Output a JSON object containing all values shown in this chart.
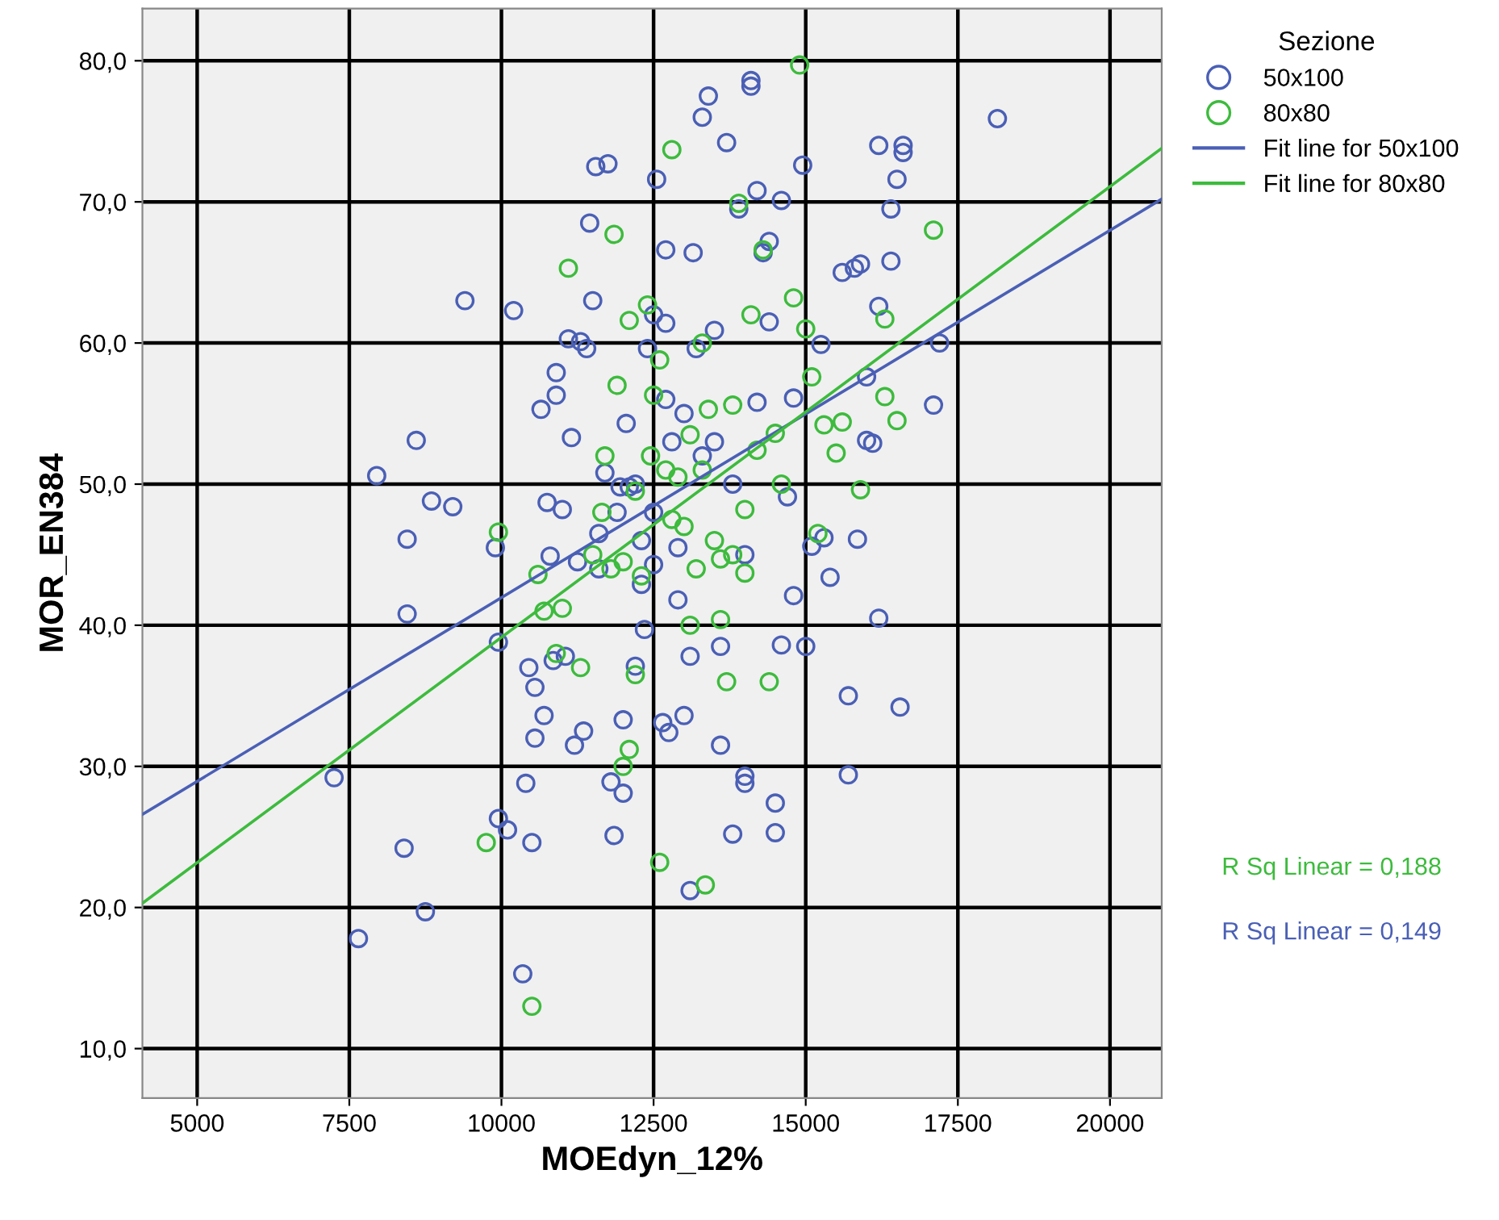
{
  "chart_data": {
    "type": "scatter",
    "xlabel": "MOEdyn_12%",
    "ylabel": "MOR_EN384",
    "legend_title": "Sezione",
    "legend": "right",
    "grid": true,
    "xlim": [
      4100,
      20850
    ],
    "ylim": [
      6.5,
      83.7
    ],
    "xticks": [
      5000,
      7500,
      10000,
      12500,
      15000,
      17500,
      20000
    ],
    "yticks": [
      {
        "value": 10,
        "label": "10,0"
      },
      {
        "value": 20,
        "label": "20,0"
      },
      {
        "value": 30,
        "label": "30,0"
      },
      {
        "value": 40,
        "label": "40,0"
      },
      {
        "value": 50,
        "label": "50,0"
      },
      {
        "value": 60,
        "label": "60,0"
      },
      {
        "value": 70,
        "label": "70,0"
      },
      {
        "value": 80,
        "label": "80,0"
      }
    ],
    "annotations": [
      "R Sq Linear = 0,188",
      "R Sq Linear = 0,149"
    ],
    "series": [
      {
        "name": "50x100",
        "marker": "circle",
        "color": "#4a5fb5",
        "x": [
          7250,
          7650,
          7950,
          8400,
          8450,
          8450,
          8600,
          8750,
          8850,
          9200,
          9400,
          9900,
          9950,
          9950,
          10100,
          10200,
          10350,
          10400,
          10450,
          10500,
          10550,
          10550,
          10650,
          10700,
          10750,
          10800,
          10850,
          10900,
          10900,
          11000,
          11050,
          11100,
          11150,
          11200,
          11250,
          11300,
          11350,
          11400,
          11450,
          11500,
          11550,
          11600,
          11600,
          11700,
          11750,
          11800,
          11850,
          11950,
          12000,
          12000,
          12050,
          12100,
          12200,
          12300,
          12350,
          12400,
          12500,
          12500,
          12550,
          12650,
          12700,
          12700,
          12750,
          12800,
          12900,
          13000,
          13100,
          13100,
          13150,
          13200,
          13300,
          13400,
          13500,
          13600,
          13600,
          13700,
          13800,
          13900,
          14000,
          14000,
          14100,
          14100,
          14200,
          14300,
          14400,
          14400,
          14500,
          14500,
          14600,
          14600,
          14700,
          14800,
          14800,
          14950,
          15000,
          15100,
          15250,
          15300,
          15400,
          15600,
          15700,
          15800,
          15700,
          15850,
          15900,
          16000,
          16000,
          16100,
          16200,
          16200,
          16200,
          16400,
          16400,
          16500,
          16550,
          16600,
          16600,
          17100,
          17200,
          18150,
          12200,
          12500,
          12700,
          13000,
          13300,
          13500,
          13800,
          14000,
          14200,
          12900,
          11900,
          12300
        ],
        "values": [
          29.2,
          17.8,
          50.6,
          24.2,
          40.8,
          46.1,
          53.1,
          19.7,
          48.8,
          48.4,
          63,
          45.5,
          38.8,
          26.3,
          25.5,
          62.3,
          15.3,
          28.8,
          37,
          24.6,
          32,
          35.6,
          55.3,
          33.6,
          48.7,
          44.9,
          37.5,
          57.9,
          56.3,
          48.2,
          37.8,
          60.3,
          53.3,
          31.5,
          44.5,
          60.1,
          32.5,
          59.6,
          68.5,
          63,
          72.5,
          44,
          46.5,
          50.8,
          72.7,
          28.9,
          25.1,
          49.8,
          33.3,
          28.1,
          54.3,
          49.8,
          37.1,
          42.9,
          39.7,
          59.6,
          44.3,
          62,
          71.6,
          33.1,
          66.6,
          61.4,
          32.4,
          53,
          41.8,
          33.6,
          37.8,
          21.2,
          66.4,
          59.6,
          76,
          77.5,
          60.9,
          31.5,
          38.5,
          74.2,
          25.2,
          69.5,
          29.3,
          28.8,
          78.6,
          78.2,
          70.8,
          66.4,
          61.5,
          67.2,
          27.4,
          25.3,
          70.1,
          38.6,
          49.1,
          42.1,
          56.1,
          72.6,
          38.5,
          45.6,
          59.9,
          46.2,
          43.4,
          65,
          29.4,
          65.3,
          35,
          46.1,
          65.6,
          57.6,
          53.1,
          52.9,
          74,
          62.6,
          40.5,
          69.5,
          65.8,
          71.6,
          34.2,
          74,
          73.5,
          55.6,
          60,
          75.9,
          50,
          48,
          56,
          55,
          52,
          53,
          50,
          45,
          55.8,
          45.5,
          48,
          46
        ]
      },
      {
        "name": "80x80",
        "marker": "circle",
        "color": "#3dbb3d",
        "x": [
          9750,
          9950,
          10500,
          10600,
          10700,
          10900,
          11000,
          11100,
          11300,
          11500,
          11650,
          11700,
          11850,
          11900,
          12000,
          12000,
          12100,
          12100,
          12200,
          12300,
          12400,
          12500,
          12600,
          12600,
          12800,
          12900,
          13000,
          13100,
          13200,
          13300,
          13350,
          13400,
          13600,
          13700,
          13800,
          13800,
          13900,
          14000,
          14100,
          14200,
          14300,
          14400,
          14500,
          14600,
          14800,
          14900,
          15000,
          15100,
          15200,
          15300,
          15500,
          15600,
          15900,
          16300,
          16300,
          16500,
          17100,
          12700,
          13100,
          13300,
          12450,
          11800,
          13500,
          14000,
          12800,
          13600,
          12200
        ],
        "values": [
          24.6,
          46.6,
          13,
          43.6,
          41,
          38,
          41.2,
          65.3,
          37,
          45,
          48,
          52,
          67.7,
          57,
          30,
          44.5,
          61.6,
          31.2,
          49.5,
          43.5,
          62.7,
          56.3,
          23.2,
          58.8,
          73.7,
          50.5,
          47,
          40,
          44,
          60,
          21.6,
          55.3,
          44.7,
          36,
          55.6,
          45,
          69.9,
          48.2,
          62,
          52.4,
          66.6,
          36,
          53.6,
          50,
          63.2,
          79.7,
          61,
          57.6,
          46.5,
          54.2,
          52.2,
          54.4,
          49.6,
          56.2,
          61.7,
          54.5,
          68,
          51,
          53.5,
          51,
          52,
          44,
          46,
          43.7,
          47.5,
          40.4,
          36.5
        ]
      },
      {
        "name": "Fit line for 50x100",
        "type": "line",
        "marker": "none",
        "color": "#4a5fb5",
        "x": [
          4100,
          20850
        ],
        "values": [
          26.6,
          70.2
        ]
      },
      {
        "name": "Fit line for 80x80",
        "type": "line",
        "marker": "none",
        "color": "#3dbb3d",
        "x": [
          4100,
          20850
        ],
        "values": [
          20.3,
          73.8
        ]
      }
    ]
  }
}
